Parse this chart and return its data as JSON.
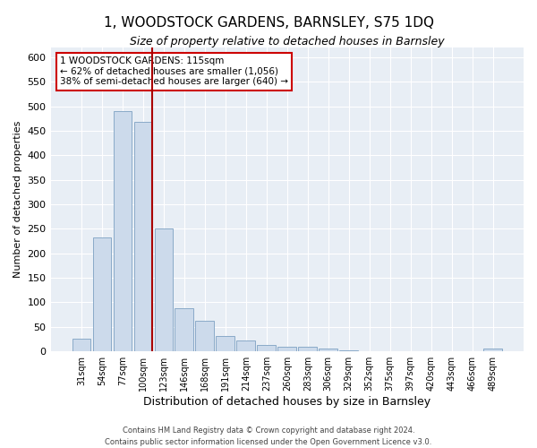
{
  "title": "1, WOODSTOCK GARDENS, BARNSLEY, S75 1DQ",
  "subtitle": "Size of property relative to detached houses in Barnsley",
  "xlabel": "Distribution of detached houses by size in Barnsley",
  "ylabel": "Number of detached properties",
  "bar_labels": [
    "31sqm",
    "54sqm",
    "77sqm",
    "100sqm",
    "123sqm",
    "146sqm",
    "168sqm",
    "191sqm",
    "214sqm",
    "237sqm",
    "260sqm",
    "283sqm",
    "306sqm",
    "329sqm",
    "352sqm",
    "375sqm",
    "397sqm",
    "420sqm",
    "443sqm",
    "466sqm",
    "489sqm"
  ],
  "bar_values": [
    26,
    233,
    490,
    468,
    250,
    89,
    63,
    31,
    22,
    13,
    10,
    10,
    5,
    2,
    1,
    1,
    1,
    1,
    0,
    0,
    5
  ],
  "bar_color": "#ccdaeb",
  "bar_edge_color": "#8aaac8",
  "vline_color": "#aa0000",
  "annotation_text": "1 WOODSTOCK GARDENS: 115sqm\n← 62% of detached houses are smaller (1,056)\n38% of semi-detached houses are larger (640) →",
  "annotation_box_color": "#ffffff",
  "annotation_box_edge": "#cc0000",
  "ylim": [
    0,
    620
  ],
  "yticks": [
    0,
    50,
    100,
    150,
    200,
    250,
    300,
    350,
    400,
    450,
    500,
    550,
    600
  ],
  "footer_line1": "Contains HM Land Registry data © Crown copyright and database right 2024.",
  "footer_line2": "Contains public sector information licensed under the Open Government Licence v3.0.",
  "bg_color": "#ffffff",
  "plot_bg_color": "#e8eef5",
  "grid_color": "#ffffff"
}
